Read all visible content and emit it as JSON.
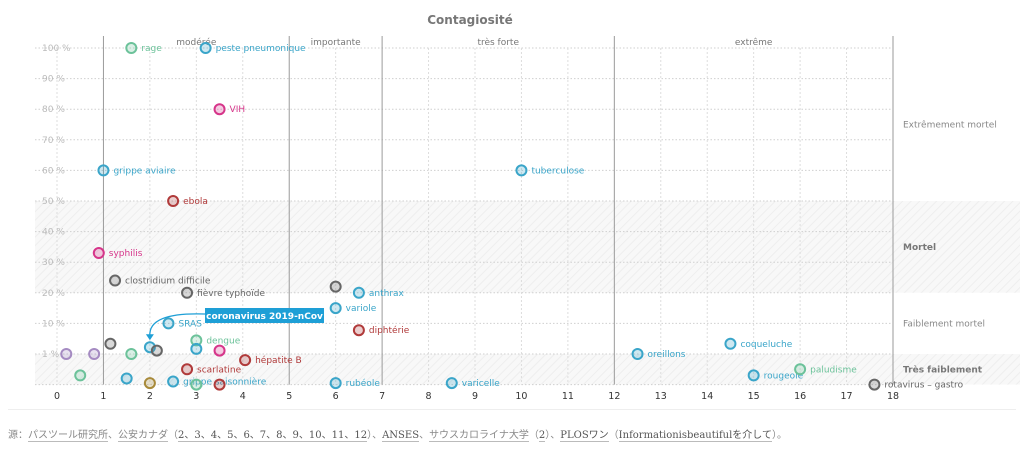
{
  "chart_data": {
    "type": "scatter",
    "title": "Contagiosité",
    "xlabel": "",
    "ylabel": "",
    "xlim": [
      0,
      18
    ],
    "x_ticks": [
      "0",
      "1",
      "2",
      "3",
      "4",
      "5",
      "6",
      "7",
      "8",
      "9",
      "10",
      "11",
      "12",
      "13",
      "14",
      "15",
      "16",
      "17",
      "18"
    ],
    "y_ticks": [
      {
        "label": "100 %",
        "value": 100
      },
      {
        "label": "90 %",
        "value": 90
      },
      {
        "label": "80 %",
        "value": 80
      },
      {
        "label": "70 %",
        "value": 70
      },
      {
        "label": "60 %",
        "value": 60
      },
      {
        "label": "50 %",
        "value": 50
      },
      {
        "label": "40 %",
        "value": 40
      },
      {
        "label": "30 %",
        "value": 30
      },
      {
        "label": "20 %",
        "value": 20
      },
      {
        "label": "10 %",
        "value": 10
      },
      {
        "label": "1 %",
        "value": 1
      }
    ],
    "contagion_categories": [
      {
        "label": "modérée",
        "from": 1,
        "to": 5
      },
      {
        "label": "importante",
        "from": 5,
        "to": 7
      },
      {
        "label": "très forte",
        "from": 7,
        "to": 12
      },
      {
        "label": "extrême",
        "from": 12,
        "to": 18
      }
    ],
    "lethality_bands": [
      {
        "label": "Extrêmement mortel",
        "bold": false,
        "hatched": false,
        "from": 50,
        "to": 100
      },
      {
        "label": "Mortel",
        "bold": true,
        "hatched": true,
        "from": 20,
        "to": 50
      },
      {
        "label": "Faiblement mortel",
        "bold": false,
        "hatched": false,
        "from": 1,
        "to": 20
      },
      {
        "label": "Très faiblement",
        "bold": true,
        "hatched": true,
        "from": 0,
        "to": 1
      }
    ],
    "grid": true,
    "series": [
      {
        "name": "rage",
        "x": 1.6,
        "y": 100,
        "color": "#6cc29a",
        "label": "rage"
      },
      {
        "name": "peste pneumonique",
        "x": 3.2,
        "y": 100,
        "color": "#3aa5c9",
        "label": "peste pneumonique"
      },
      {
        "name": "VIH",
        "x": 3.5,
        "y": 80,
        "color": "#d6358a",
        "label": "VIH"
      },
      {
        "name": "grippe aviaire",
        "x": 1.0,
        "y": 60,
        "color": "#3aa5c9",
        "label": "grippe aviaire"
      },
      {
        "name": "tuberculose",
        "x": 10.0,
        "y": 60,
        "color": "#3aa5c9",
        "label": "tuberculose"
      },
      {
        "name": "ebola",
        "x": 2.5,
        "y": 50,
        "color": "#b03a3a",
        "label": "ebola"
      },
      {
        "name": "syphilis",
        "x": 0.9,
        "y": 33,
        "color": "#d6358a",
        "label": "syphilis"
      },
      {
        "name": "clostridium difficile",
        "x": 1.25,
        "y": 24,
        "color": "#666666",
        "label": "clostridium difficile"
      },
      {
        "name": "fièvre typhoïde",
        "x": 2.8,
        "y": 20,
        "color": "#666666",
        "label": "fièvre typhoïde"
      },
      {
        "name": "inconnu gris",
        "x": 6.0,
        "y": 22,
        "color": "#666666",
        "label": ""
      },
      {
        "name": "anthrax",
        "x": 6.5,
        "y": 20,
        "color": "#3aa5c9",
        "label": "anthrax"
      },
      {
        "name": "variole",
        "x": 6.0,
        "y": 15,
        "color": "#3aa5c9",
        "label": "variole"
      },
      {
        "name": "SRAS",
        "x": 2.4,
        "y": 10,
        "color": "#3aa5c9",
        "label": "SRAS"
      },
      {
        "name": "diphtérie",
        "x": 6.5,
        "y": 8,
        "color": "#b03a3a",
        "label": "diphtérie"
      },
      {
        "name": "coronavirus 2019-nCov",
        "x": 2.0,
        "y": 3,
        "color": "#3aa5c9",
        "label": ""
      },
      {
        "name": "dengue",
        "x": 3.0,
        "y": 5,
        "color": "#6cc29a",
        "label": "dengue"
      },
      {
        "name": "gris 1",
        "x": 1.15,
        "y": 4,
        "color": "#666666",
        "label": ""
      },
      {
        "name": "gris 2",
        "x": 2.15,
        "y": 2,
        "color": "#666666",
        "label": ""
      },
      {
        "name": "bleu 3",
        "x": 3.0,
        "y": 2.5,
        "color": "#3aa5c9",
        "label": ""
      },
      {
        "name": "rose",
        "x": 3.5,
        "y": 2,
        "color": "#d6358a",
        "label": ""
      },
      {
        "name": "violet 1",
        "x": 0.2,
        "y": 1,
        "color": "#a58bc2",
        "label": ""
      },
      {
        "name": "violet 2",
        "x": 0.8,
        "y": 1,
        "color": "#a58bc2",
        "label": ""
      },
      {
        "name": "vert 1",
        "x": 1.6,
        "y": 1,
        "color": "#6cc29a",
        "label": ""
      },
      {
        "name": "hépatite B",
        "x": 4.05,
        "y": 0.8,
        "color": "#b03a3a",
        "label": "hépatite B"
      },
      {
        "name": "scarlatine",
        "x": 2.8,
        "y": 0.5,
        "color": "#b03a3a",
        "label": "scarlatine"
      },
      {
        "name": "vert 2",
        "x": 0.5,
        "y": 0.3,
        "color": "#6cc29a",
        "label": ""
      },
      {
        "name": "bleu 4",
        "x": 1.5,
        "y": 0.2,
        "color": "#3aa5c9",
        "label": ""
      },
      {
        "name": "ocre",
        "x": 2.0,
        "y": 0.05,
        "color": "#a88a3a",
        "label": ""
      },
      {
        "name": "grippe saisonnière",
        "x": 2.5,
        "y": 0.1,
        "color": "#3aa5c9",
        "label": "grippe saisonnière"
      },
      {
        "name": "vert 3",
        "x": 3.0,
        "y": 0.0,
        "color": "#6cc29a",
        "label": ""
      },
      {
        "name": "rouge bas",
        "x": 3.5,
        "y": 0.0,
        "color": "#b03a3a",
        "label": ""
      },
      {
        "name": "rubéole",
        "x": 6.0,
        "y": 0.05,
        "color": "#3aa5c9",
        "label": "rubéole"
      },
      {
        "name": "varicelle",
        "x": 8.5,
        "y": 0.05,
        "color": "#3aa5c9",
        "label": "varicelle"
      },
      {
        "name": "oreillons",
        "x": 12.5,
        "y": 1,
        "color": "#3aa5c9",
        "label": "oreillons"
      },
      {
        "name": "coqueluche",
        "x": 14.5,
        "y": 4,
        "color": "#3aa5c9",
        "label": "coqueluche"
      },
      {
        "name": "rougeole",
        "x": 15.0,
        "y": 0.3,
        "color": "#3aa5c9",
        "label": "rougeole"
      },
      {
        "name": "paludisme",
        "x": 16.0,
        "y": 0.5,
        "color": "#6cc29a",
        "label": "paludisme"
      },
      {
        "name": "rotavirus – gastro",
        "x": 17.6,
        "y": 0.0,
        "color": "#666666",
        "label": "rotavirus – gastro"
      }
    ],
    "annotation": {
      "label": "coronavirus 2019-nCov",
      "target": "coronavirus 2019-nCov",
      "color": "#1e9fd6"
    }
  },
  "source": {
    "prefix": "源：",
    "parts": [
      {
        "text": "パスツール研究所",
        "link": true,
        "dark": false
      },
      {
        "text": "、",
        "link": false
      },
      {
        "text": "公安カナダ",
        "link": true,
        "dark": false
      },
      {
        "text": "（",
        "link": false
      },
      {
        "text": "2、3、4、5、6、7、8、9、10、11、12",
        "link": true,
        "dark": true
      },
      {
        "text": "）、",
        "link": false
      },
      {
        "text": "ANSES",
        "link": true,
        "dark": true
      },
      {
        "text": "、",
        "link": false
      },
      {
        "text": "サウスカロライナ大学",
        "link": true,
        "dark": false
      },
      {
        "text": "（",
        "link": false
      },
      {
        "text": "2",
        "link": true,
        "dark": true
      },
      {
        "text": "）、",
        "link": false
      },
      {
        "text": "PLOSワン",
        "link": true,
        "dark": true
      },
      {
        "text": "（",
        "link": false
      },
      {
        "text": "Informationisbeautifulを介して",
        "link": true,
        "dark": true
      },
      {
        "text": "）。",
        "link": false
      }
    ]
  }
}
